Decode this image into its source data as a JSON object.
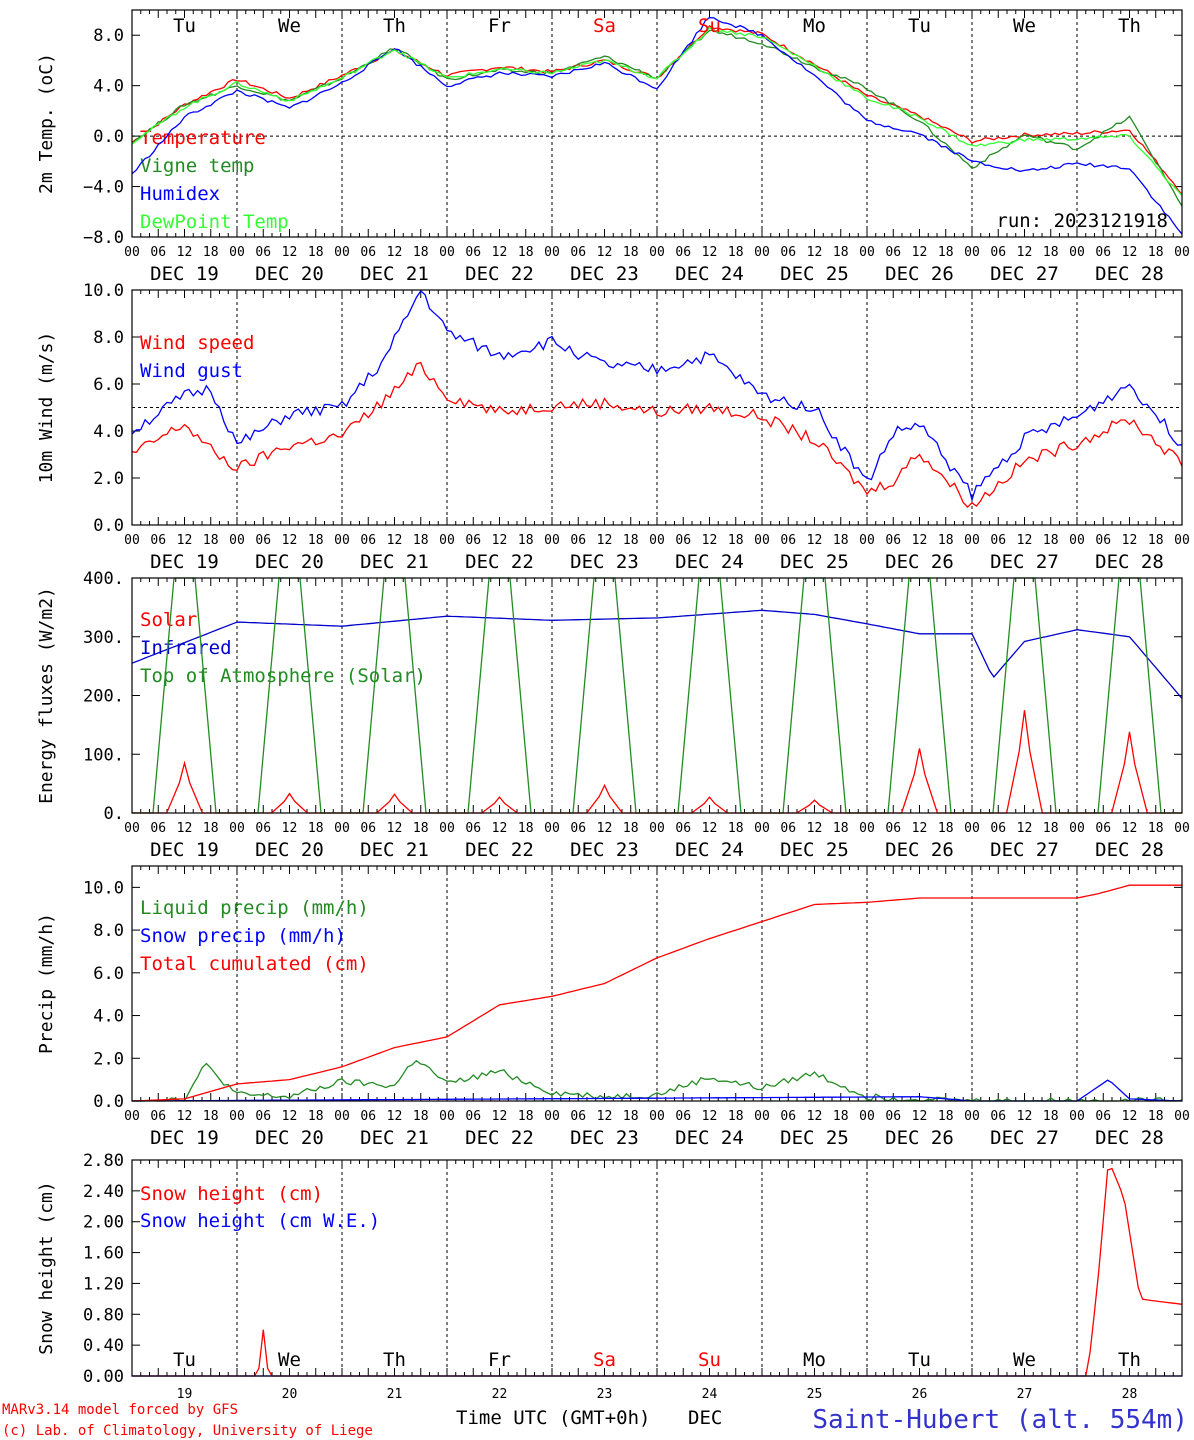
{
  "colors": {
    "red": "#ff0000",
    "green": "#228b22",
    "blue": "#0000ff",
    "lime": "#33ff33",
    "navy": "#3333cc"
  },
  "days": [
    "Tu",
    "We",
    "Th",
    "Fr",
    "Sa",
    "Su",
    "Mo",
    "Tu",
    "We",
    "Th"
  ],
  "dates": [
    "DEC 19",
    "DEC 20",
    "DEC 21",
    "DEC 22",
    "DEC 23",
    "DEC 24",
    "DEC 25",
    "DEC 26",
    "DEC 27",
    "DEC 28"
  ],
  "hour_ticks": [
    "00",
    "06",
    "12",
    "18"
  ],
  "hour_end": "00",
  "bottom_days": [
    "19",
    "20",
    "21",
    "22",
    "23",
    "24",
    "25",
    "26",
    "27",
    "28"
  ],
  "footer": {
    "credit_line1": "MARv3.14 model forced by GFS",
    "credit_line2": "(c) Lab. of Climatology, University of Liege",
    "time_label": "Time UTC (GMT+0h)",
    "month": "DEC",
    "station": "Saint-Hubert (alt. 554m)"
  },
  "chart_data": [
    {
      "type": "line",
      "ylabel": "2m Temp. (oC)",
      "ylim": [
        -8,
        10
      ],
      "yticks": [
        "8.0",
        "4.0",
        "0.0",
        "−4.0",
        "−8.0"
      ],
      "ytick_values": [
        8,
        4,
        0,
        -4,
        -8
      ],
      "ref_line": 0,
      "annotation": "run: 2023121918",
      "x_range_days": [
        0,
        10
      ],
      "series": [
        {
          "name": "Temperature",
          "color": "#ff0000",
          "x": [
            0,
            0.5,
            1,
            1.5,
            2,
            2.5,
            3,
            3.5,
            4,
            4.5,
            5,
            5.5,
            6,
            6.5,
            7,
            7.5,
            8,
            8.5,
            9,
            9.5,
            10
          ],
          "values": [
            -0.5,
            2.5,
            4.5,
            3,
            4.8,
            6.8,
            4.8,
            5.5,
            5.1,
            6,
            4.6,
            8.7,
            8.1,
            5.7,
            3.2,
            1.6,
            -0.4,
            0.1,
            0.2,
            0.5,
            -4.5
          ]
        },
        {
          "name": "Vigne temp",
          "color": "#228b22",
          "x": [
            0,
            0.5,
            1,
            1.5,
            2,
            2.5,
            3,
            3.5,
            4,
            4.5,
            5,
            5.5,
            6,
            6.5,
            7,
            7.5,
            8,
            8.5,
            9,
            9.5,
            10
          ],
          "values": [
            -0.5,
            2.5,
            4,
            2.8,
            4.6,
            7,
            4.5,
            5.2,
            5,
            6.3,
            4.6,
            8.4,
            7.4,
            5.5,
            3.8,
            1.2,
            -2.5,
            0.1,
            -1,
            1.5,
            -5.5
          ]
        },
        {
          "name": "Humidex",
          "color": "#0000ff",
          "x": [
            0,
            0.5,
            1,
            1.5,
            2,
            2.5,
            3,
            3.5,
            4,
            4.5,
            5,
            5.5,
            6,
            6.5,
            7,
            7.5,
            8,
            8.5,
            9,
            9.5,
            10
          ],
          "values": [
            -3,
            1.5,
            3.6,
            2.2,
            4.2,
            7,
            4,
            5,
            4.7,
            5.8,
            3.8,
            9.5,
            8,
            4.8,
            1.2,
            0.2,
            -2,
            -2.8,
            -2.2,
            -2.5,
            -7.8
          ]
        },
        {
          "name": "DewPoint Temp",
          "color": "#33ff33",
          "x": [
            0,
            0.5,
            1,
            1.5,
            2,
            2.5,
            3,
            3.5,
            4,
            4.5,
            5,
            5.5,
            6,
            6.5,
            7,
            7.5,
            8,
            8.5,
            9,
            9.5,
            10
          ],
          "values": [
            -0.5,
            2.3,
            4.2,
            2.8,
            4.6,
            6.9,
            4.6,
            5.3,
            5,
            6,
            4.6,
            8.5,
            7.9,
            5.6,
            3,
            1.5,
            -0.8,
            -0.3,
            -0.2,
            0,
            -4.8
          ]
        }
      ]
    },
    {
      "type": "line",
      "ylabel": "10m Wind (m/s)",
      "ylim": [
        0,
        10
      ],
      "yticks": [
        "10.0",
        "8.0",
        "6.0",
        "4.0",
        "2.0",
        "0.0"
      ],
      "ytick_values": [
        10,
        8,
        6,
        4,
        2,
        0
      ],
      "ref_line": 5,
      "x_range_days": [
        0,
        10
      ],
      "series": [
        {
          "name": "Wind speed",
          "color": "#ff0000",
          "x": [
            0,
            0.5,
            0.75,
            1,
            1.5,
            2,
            2.4,
            2.75,
            3,
            3.5,
            4,
            4.5,
            5,
            5.5,
            6,
            6.5,
            7,
            7.25,
            7.5,
            8,
            8.5,
            9,
            9.5,
            10
          ],
          "values": [
            3,
            4.3,
            3.2,
            2.4,
            3.4,
            3.8,
            5.3,
            6.8,
            5.5,
            4.8,
            5.1,
            5.2,
            4.8,
            5,
            4.6,
            3.6,
            1.4,
            1.9,
            3.1,
            0.8,
            2.7,
            3.5,
            4.5,
            2.6
          ]
        },
        {
          "name": "Wind gust",
          "color": "#0000ff",
          "x": [
            0,
            0.5,
            0.75,
            1,
            1.5,
            2,
            2.4,
            2.75,
            3,
            3.5,
            4,
            4.5,
            5,
            5.5,
            6,
            6.5,
            7,
            7.25,
            7.5,
            8,
            8.5,
            9,
            9.5,
            10
          ],
          "values": [
            4,
            5.5,
            5.8,
            3.4,
            4.7,
            5,
            7,
            10,
            8.2,
            7.2,
            7.8,
            6.8,
            6.6,
            7.2,
            5.5,
            5,
            1.8,
            3.9,
            4.3,
            1.3,
            3.7,
            4.6,
            6,
            3.4
          ]
        }
      ]
    },
    {
      "type": "line",
      "ylabel": "Energy fluxes (W/m2)",
      "ylim": [
        0,
        400
      ],
      "yticks": [
        "400.",
        "300.",
        "200.",
        "100.",
        "0."
      ],
      "ytick_values": [
        400,
        300,
        200,
        100,
        0
      ],
      "x_range_days": [
        0,
        10
      ],
      "series": [
        {
          "name": "Solar",
          "color": "#ff0000",
          "peaks": [
            85,
            33,
            32,
            27,
            47,
            27,
            22,
            110,
            175,
            138
          ]
        },
        {
          "name": "Infrared",
          "color": "#0000cc",
          "x": [
            0,
            1,
            2,
            3,
            4,
            5,
            6,
            6.5,
            7,
            7.5,
            8,
            8.2,
            8.5,
            9,
            9.5,
            10
          ],
          "values": [
            255,
            325,
            318,
            335,
            328,
            332,
            345,
            338,
            322,
            305,
            305,
            230,
            292,
            312,
            300,
            195
          ]
        },
        {
          "name": "Top of Atmosphere (Solar)",
          "color": "#228b22",
          "peak": 400
        }
      ]
    },
    {
      "type": "line",
      "ylabel": "Precip (mm/h)",
      "ylim": [
        0,
        11
      ],
      "yticks": [
        "10.0",
        "8.0",
        "6.0",
        "4.0",
        "2.0",
        "0.0"
      ],
      "ytick_values": [
        10,
        8,
        6,
        4,
        2,
        0
      ],
      "x_range_days": [
        0,
        10
      ],
      "series": [
        {
          "name": "Liquid precip (mm/h)",
          "color": "#228b22",
          "x": [
            0,
            0.5,
            0.7,
            1,
            1.5,
            2,
            2.5,
            2.7,
            3,
            3.5,
            4,
            4.5,
            5,
            5.5,
            6,
            6.5,
            7,
            7.5,
            8,
            8.5,
            9,
            9.5,
            10
          ],
          "values": [
            0,
            0.1,
            1.7,
            0.3,
            0.2,
            0.9,
            0.7,
            2,
            0.8,
            1.4,
            0.4,
            0.2,
            0.3,
            1.1,
            0.6,
            1.3,
            0.2,
            0.1,
            0,
            0,
            0,
            0,
            0
          ]
        },
        {
          "name": "Snow precip (mm/h)",
          "color": "#0000ff",
          "x": [
            0,
            7.5,
            8,
            9,
            9.3,
            9.5,
            10
          ],
          "values": [
            0,
            0.2,
            0,
            0,
            1,
            0.1,
            0
          ]
        },
        {
          "name": "Total cumulated (cm)",
          "color": "#ff0000",
          "x": [
            0,
            0.5,
            1,
            1.5,
            2,
            2.5,
            3,
            3.5,
            4,
            4.5,
            5,
            5.5,
            6,
            6.5,
            7,
            7.5,
            8,
            8.5,
            9,
            9.2,
            9.5,
            10
          ],
          "values": [
            0,
            0.1,
            0.8,
            1,
            1.6,
            2.5,
            3,
            4.5,
            4.9,
            5.5,
            6.7,
            7.6,
            8.4,
            9.2,
            9.3,
            9.5,
            9.5,
            9.5,
            9.5,
            9.7,
            10.1,
            10.1
          ]
        }
      ]
    },
    {
      "type": "line",
      "ylabel": "Snow height (cm)",
      "ylim": [
        0,
        2.8
      ],
      "yticks": [
        "2.80",
        "2.40",
        "2.00",
        "1.60",
        "1.20",
        "0.80",
        "0.40",
        "0.00"
      ],
      "ytick_values": [
        2.8,
        2.4,
        2,
        1.6,
        1.2,
        0.8,
        0.4,
        0
      ],
      "x_range_days": [
        0,
        10
      ],
      "series": [
        {
          "name": "Snow height (cm)",
          "color": "#ff0000",
          "x": [
            0,
            1.2,
            1.25,
            1.3,
            9.1,
            9.2,
            9.3,
            9.45,
            9.6,
            9.7,
            10
          ],
          "values": [
            0,
            0,
            0.6,
            0,
            0,
            1.25,
            2.8,
            2.3,
            1,
            0.98,
            0.93
          ]
        },
        {
          "name": "Snow height (cm W.E.)",
          "color": "#0000ff",
          "x": [
            0,
            10
          ],
          "values": [
            0,
            0
          ]
        }
      ]
    }
  ]
}
